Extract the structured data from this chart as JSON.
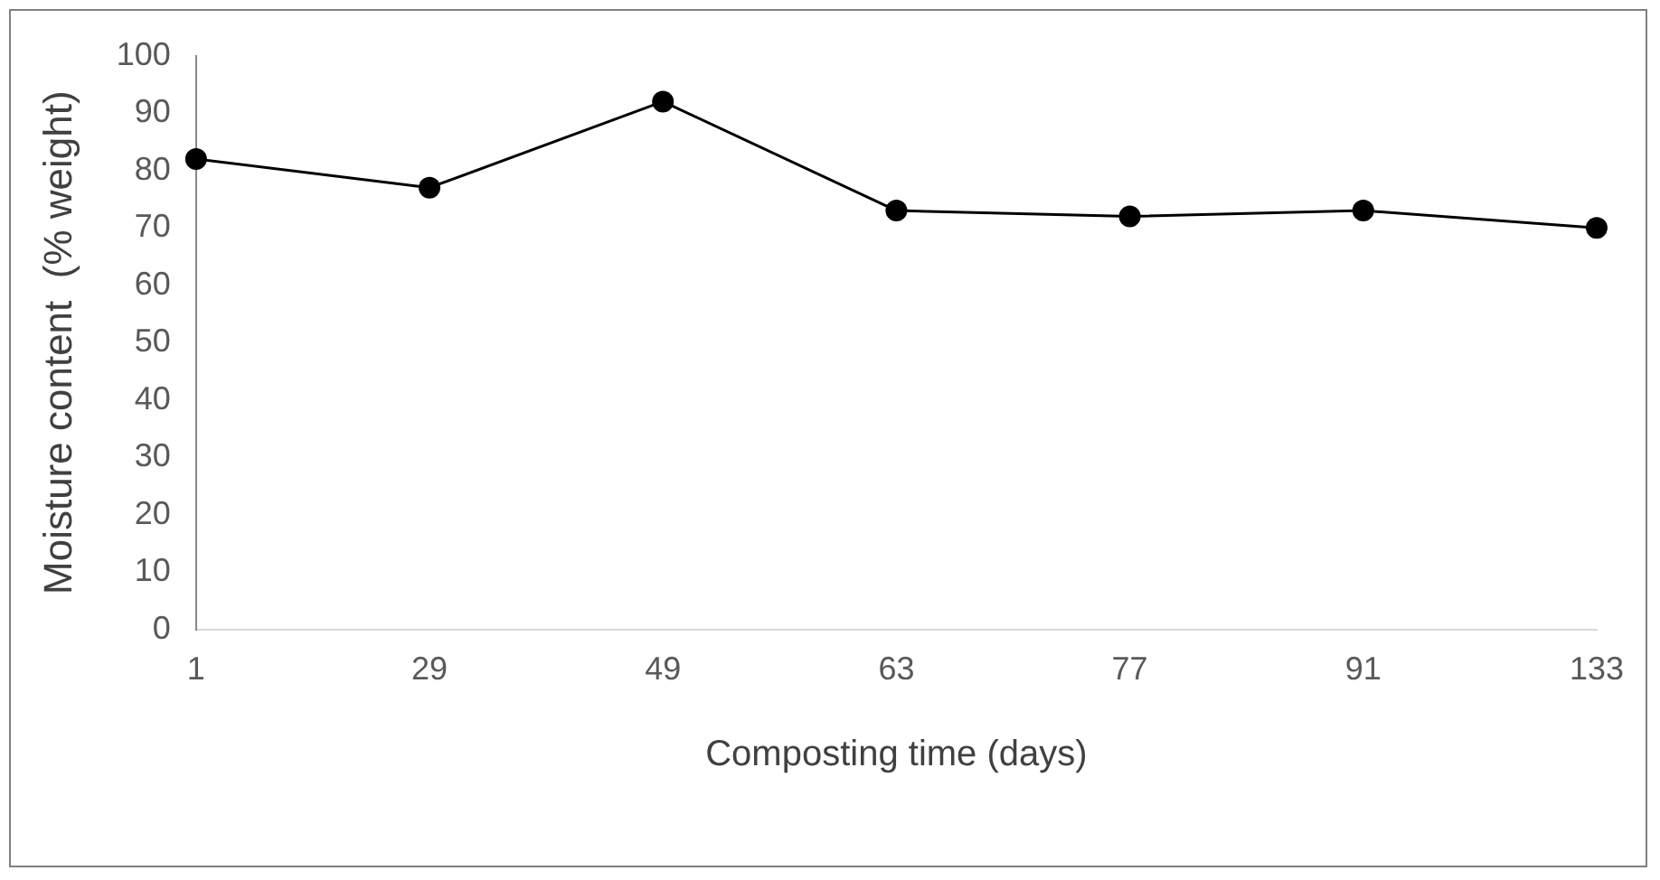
{
  "chart_data": {
    "type": "line",
    "xlabel": "Composting time (days)",
    "ylabel": "Moisture content  (% weight)",
    "categories": [
      "1",
      "29",
      "49",
      "63",
      "77",
      "91",
      "133"
    ],
    "series": [
      {
        "color": "#000000",
        "values": [
          82,
          77,
          92,
          73,
          72,
          73,
          70
        ]
      }
    ],
    "ylim": [
      0,
      100
    ],
    "yticks": [
      0,
      10,
      20,
      30,
      40,
      50,
      60,
      70,
      80,
      90,
      100
    ],
    "grid": false,
    "legend": false,
    "marker": "circle",
    "line_style": "solid"
  }
}
